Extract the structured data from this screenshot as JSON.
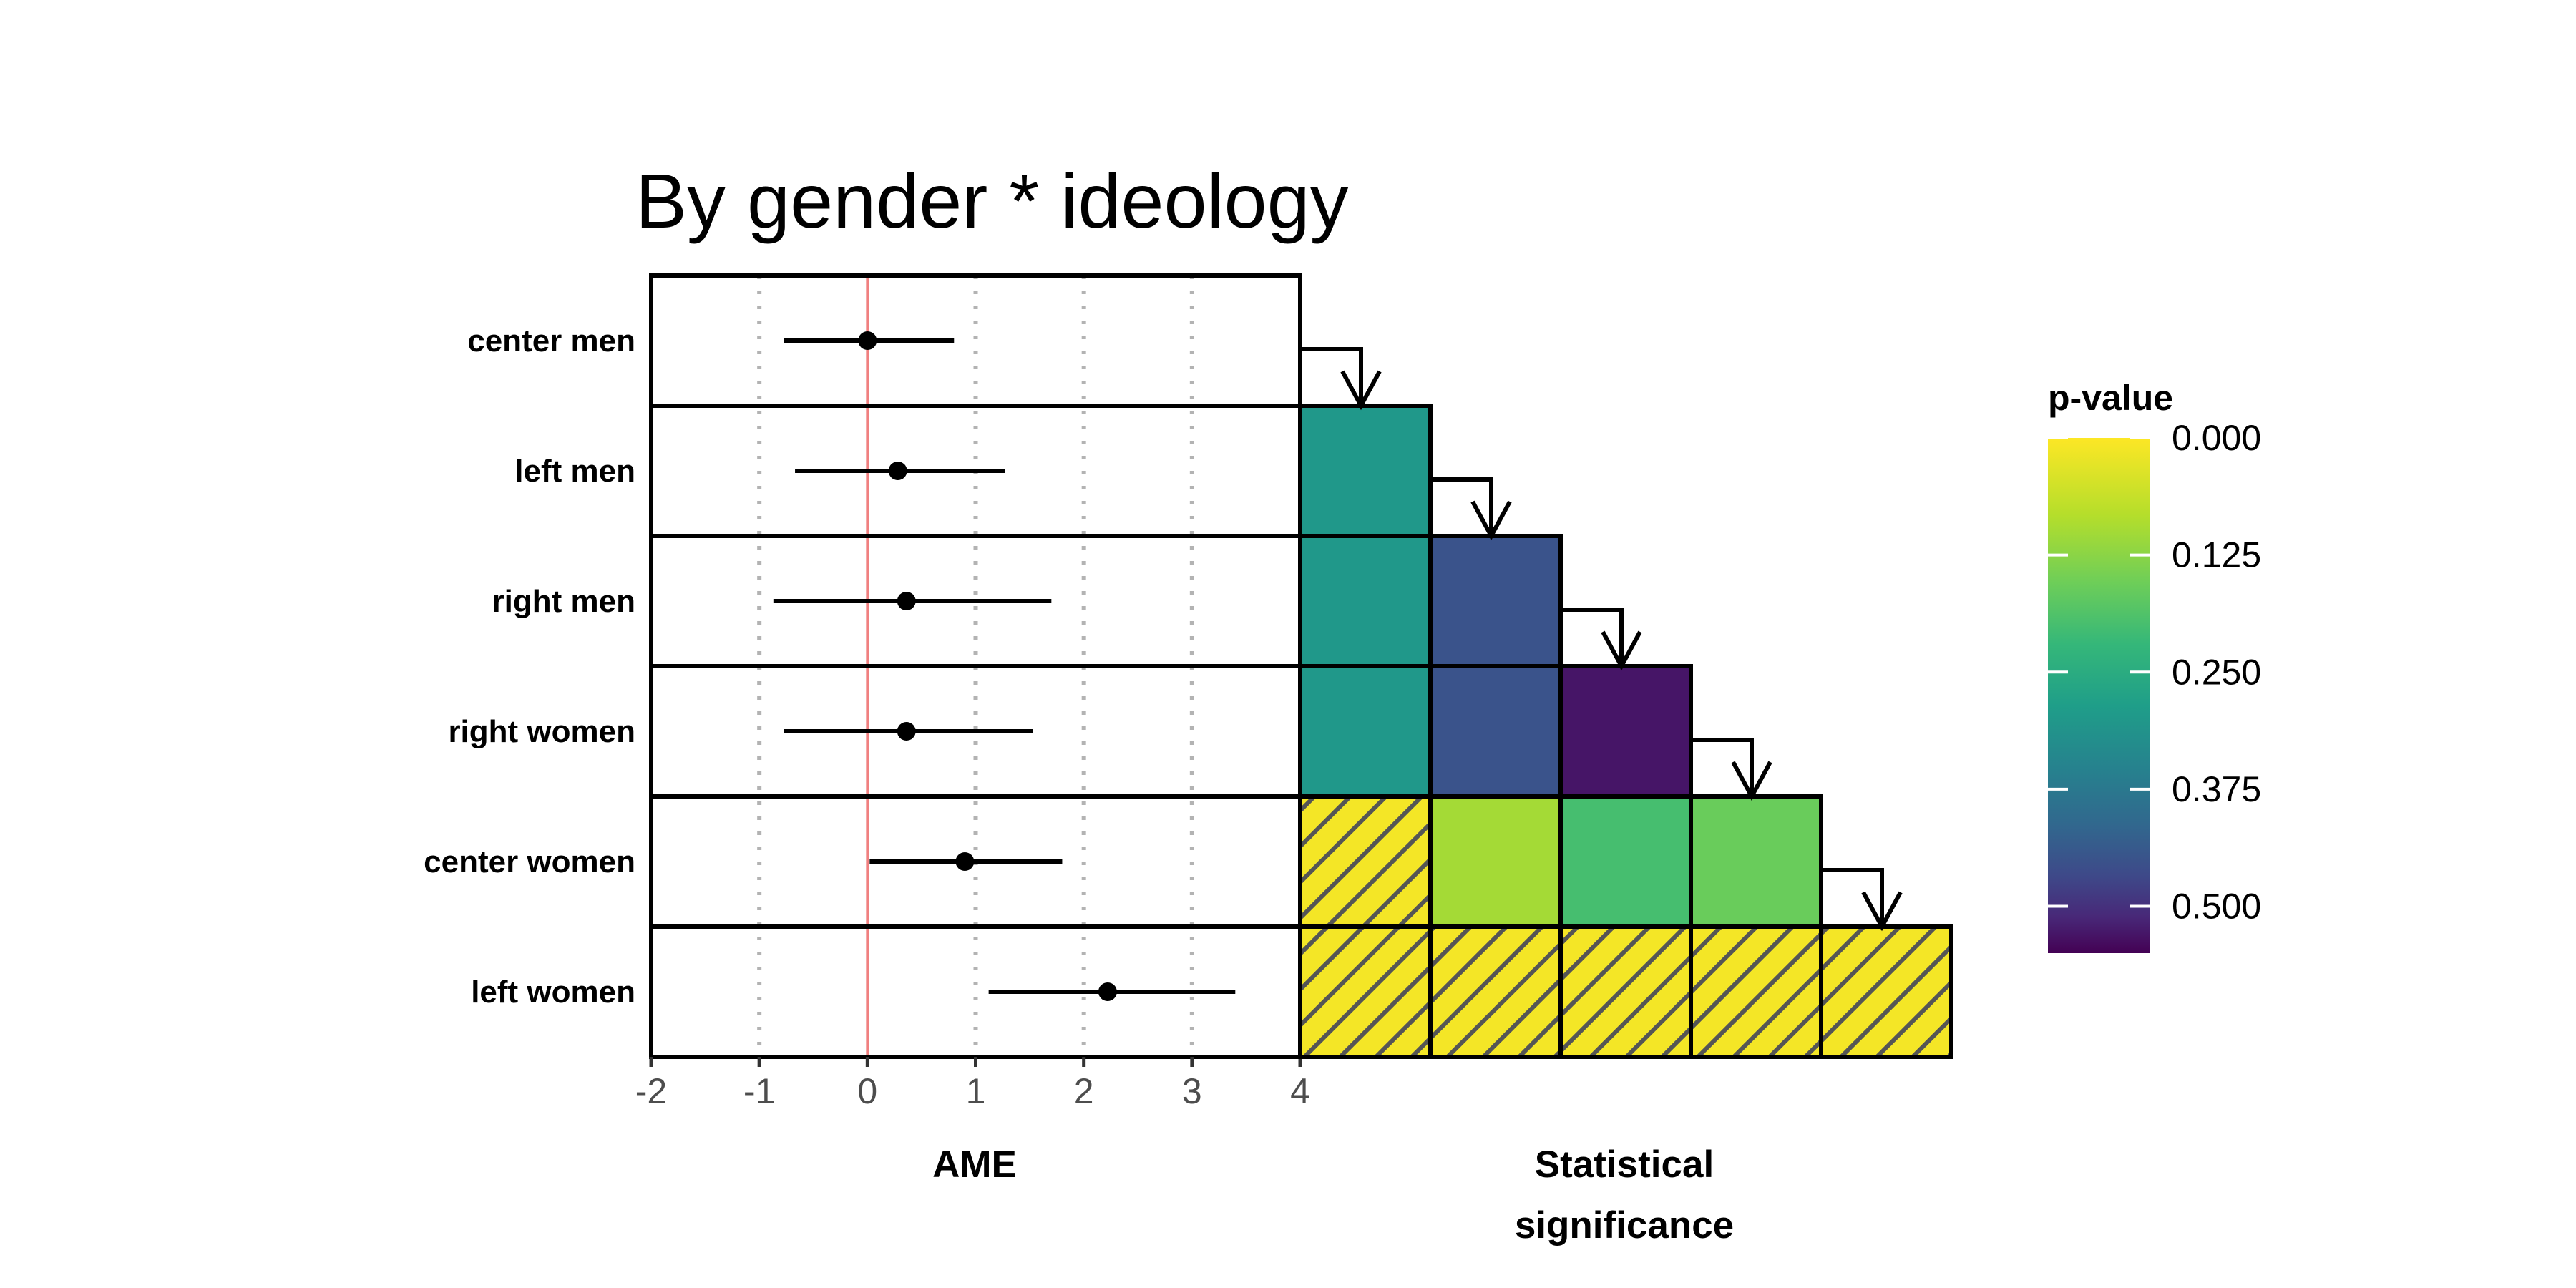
{
  "chart_data": {
    "type": "forest-plot-with-significance-matrix",
    "title": "By gender * ideology",
    "xlabel": "AME",
    "matrix_label_line1": "Statistical",
    "matrix_label_line2": "significance",
    "xlim": [
      -2,
      4
    ],
    "xticks": [
      "-2",
      "-1",
      "0",
      "1",
      "2",
      "3",
      "4"
    ],
    "reference_line": 0,
    "grid": "dotted vertical at -1, 1, 2, 3",
    "rows": [
      {
        "label": "center men",
        "estimate": 0.0,
        "lower": -0.77,
        "upper": 0.8
      },
      {
        "label": "left men",
        "estimate": 0.28,
        "lower": -0.67,
        "upper": 1.27
      },
      {
        "label": "right men",
        "estimate": 0.36,
        "lower": -0.87,
        "upper": 1.7
      },
      {
        "label": "right women",
        "estimate": 0.36,
        "lower": -0.77,
        "upper": 1.53
      },
      {
        "label": "center women",
        "estimate": 0.9,
        "lower": 0.02,
        "upper": 1.8
      },
      {
        "label": "left women",
        "estimate": 2.22,
        "lower": 1.12,
        "upper": 3.4
      }
    ],
    "pvalue_matrix": [
      [],
      [
        0.3
      ],
      [
        0.3,
        0.45
      ],
      [
        0.3,
        0.45,
        0.53
      ],
      [
        0.01,
        0.1,
        0.2,
        0.16
      ],
      [
        0.01,
        0.01,
        0.01,
        0.01,
        0.01
      ]
    ],
    "significance_threshold": 0.05,
    "legend": {
      "title": "p-value",
      "position": "right",
      "ticks": [
        "0.000",
        "0.125",
        "0.250",
        "0.375",
        "0.500"
      ],
      "range": [
        0,
        0.55
      ],
      "colormap": "viridis (reversed)"
    }
  }
}
